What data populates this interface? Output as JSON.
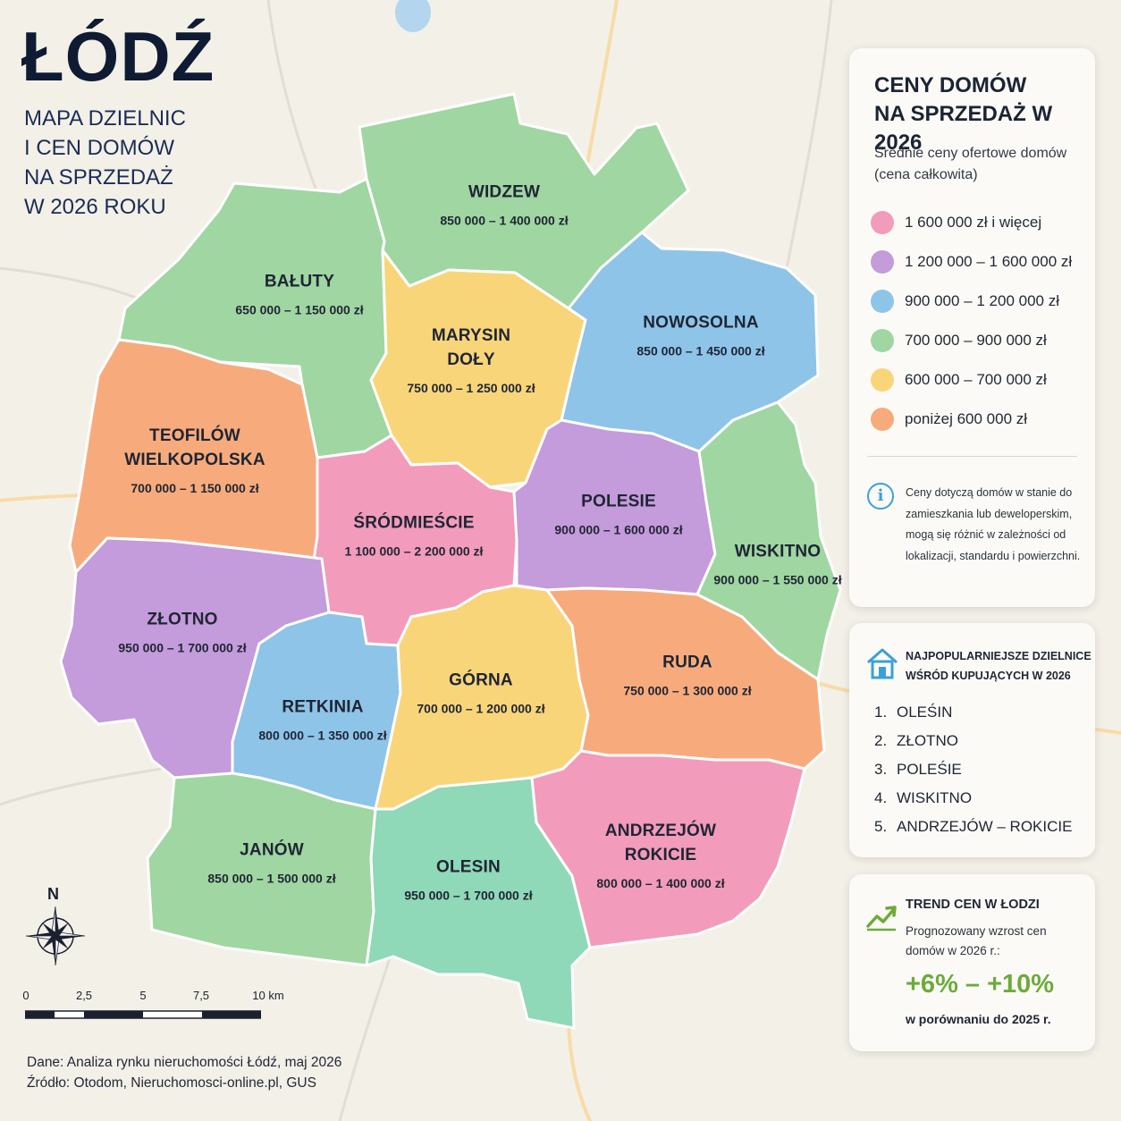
{
  "header": {
    "city": "ŁÓDŹ",
    "subtitle_lines": [
      "MAPA DZIELNIC",
      "I CEN DOMÓW",
      "NA SPRZEDAŻ",
      "W 2026 ROKU"
    ]
  },
  "districts": [
    {
      "id": "widzew",
      "name": "WIDZEW",
      "price": "850 000 – 1 400 000 zł",
      "category": "green"
    },
    {
      "id": "baluty",
      "name": "BAŁUTY",
      "price": "650 000 – 1 150 000 zł",
      "category": "green"
    },
    {
      "id": "marysin",
      "name": "MARYSIN\nDOŁY",
      "price": "750 000 – 1 250 000 zł",
      "category": "yellow"
    },
    {
      "id": "nowosolna",
      "name": "NOWOSOLNA",
      "price": "850 000 – 1 450 000 zł",
      "category": "blue"
    },
    {
      "id": "teofilow",
      "name": "TEOFILÓW\nWIELKOPOLSKA",
      "price": "700 000 – 1 150 000 zł",
      "category": "orange"
    },
    {
      "id": "srodmiescie",
      "name": "ŚRÓDMIEŚCIE",
      "price": "1 100 000 – 2 200 000 zł",
      "category": "pink"
    },
    {
      "id": "polesie",
      "name": "POLESIE",
      "price": "900 000 – 1 600 000 zł",
      "category": "purple"
    },
    {
      "id": "wiskitno",
      "name": "WISKITNO",
      "price": "900 000 – 1 550 000 zł",
      "category": "green"
    },
    {
      "id": "zlotno",
      "name": "ZŁOTNO",
      "price": "950 000 – 1 700 000 zł",
      "category": "purple"
    },
    {
      "id": "retkinia",
      "name": "RETKINIA",
      "price": "800 000 – 1 350 000 zł",
      "category": "blue"
    },
    {
      "id": "gorna",
      "name": "GÓRNA",
      "price": "700 000 – 1 200 000 zł",
      "category": "yellow"
    },
    {
      "id": "ruda",
      "name": "RUDA",
      "price": "750 000 – 1 300 000 zł",
      "category": "orange"
    },
    {
      "id": "janow",
      "name": "JANÓW",
      "price": "850 000 – 1 500 000 zł",
      "category": "green"
    },
    {
      "id": "olesin",
      "name": "OLESIN",
      "price": "950 000 – 1 700 000 zł",
      "category": "teal"
    },
    {
      "id": "andrzejow",
      "name": "ANDRZEJÓW\nROKICIE",
      "price": "800 000 – 1 400 000 zł",
      "category": "pink"
    }
  ],
  "colors": {
    "pink": "#f29bbb",
    "purple": "#c49bdb",
    "blue": "#8ec4e8",
    "green": "#9fd6a2",
    "teal": "#8fd8b8",
    "yellow": "#f9d57a",
    "orange": "#f7ab7c",
    "light_green": "#b7dc8a",
    "accent_green": "#6cab3b",
    "info_blue": "#3ba0d6"
  },
  "legend": {
    "title_lines": [
      "CENY DOMÓW",
      "NA SPRZEDAŻ W 2026"
    ],
    "subtitle": "Średnie ceny ofertowe domów (cena całkowita)",
    "items": [
      {
        "label": "1 600 000 zł i więcej",
        "color": "#f29bbb"
      },
      {
        "label": "1 200 000 – 1 600 000 zł",
        "color": "#c49bdb"
      },
      {
        "label": "900 000 – 1 200 000 zł",
        "color": "#8ec4e8"
      },
      {
        "label": "700 000 – 900 000 zł",
        "color": "#9fd6a2"
      },
      {
        "label": "600 000 – 700 000 zł",
        "color": "#f9d57a"
      },
      {
        "label": "poniżej 600 000 zł",
        "color": "#f7ab7c"
      }
    ],
    "note": "Ceny dotyczą domów w stanie do zamieszkania lub deweloperskim, mogą się różnić w zależności od lokalizacji, standardu i powierzchni."
  },
  "popular": {
    "title": "NAJPOPULARNIEJSZE DZIELNICE WŚRÓD KUPUJĄCYCH W 2026",
    "items": [
      {
        "num": "1.",
        "name": "OLEŚIN"
      },
      {
        "num": "2.",
        "name": "ZŁOTNO"
      },
      {
        "num": "3.",
        "name": "POLEŚIE"
      },
      {
        "num": "4.",
        "name": "WISKITNO"
      },
      {
        "num": "5.",
        "name": "ANDRZEJÓW – ROKICIE"
      }
    ]
  },
  "trend": {
    "title": "TREND CEN W ŁODZI",
    "description": "Prognozowany wzrost cen domów w 2026 r.:",
    "value": "+6% – +10%",
    "comparison": "w porównaniu do 2025 r."
  },
  "compass": {
    "north": "N",
    "icon": "compass-rose-icon"
  },
  "scale": {
    "labels": [
      "0",
      "2,5",
      "5",
      "7,5",
      "10 km"
    ]
  },
  "footer": {
    "data": "Dane: Analiza rynku nieruchomości Łódź, maj 2026",
    "source": "Źródło: Otodom, Nieruchomosci-online.pl, GUS"
  }
}
